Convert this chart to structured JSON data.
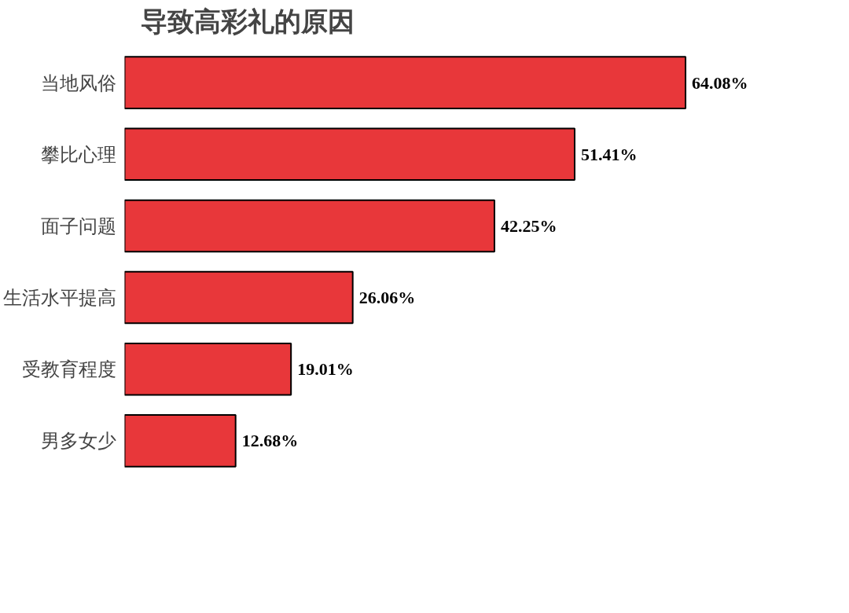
{
  "chart_data": {
    "type": "bar",
    "orientation": "horizontal",
    "title": "导致高彩礼的原因",
    "categories": [
      "当地风俗",
      "攀比心理",
      "面子问题",
      "生活水平提高",
      "受教育程度",
      "男多女少"
    ],
    "values": [
      64.08,
      51.41,
      42.25,
      26.06,
      19.01,
      12.68
    ],
    "value_labels": [
      "64.08%",
      "51.41%",
      "42.25%",
      "26.06%",
      "19.01%",
      "12.68%"
    ],
    "color": "#e8373a",
    "grid": false,
    "tick_labels": "y"
  }
}
